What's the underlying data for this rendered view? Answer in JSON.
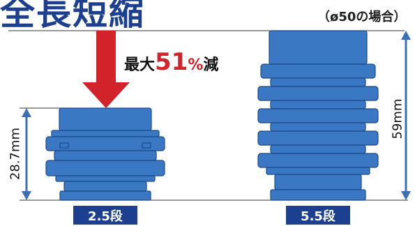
{
  "title": "全長短縮",
  "note": "（ø50の場合）",
  "reduction": {
    "label_prefix": "最大",
    "value": "51",
    "unit": "%",
    "label_suffix": "減"
  },
  "left_cup": {
    "stage_label": "2.5段",
    "height_label": "28.7mm",
    "height_mm": 28.7,
    "stages": 2.5
  },
  "right_cup": {
    "stage_label": "5.5段",
    "height_label": "59mm",
    "height_mm": 59,
    "stages": 5.5
  },
  "colors": {
    "cup_body": "#3b78c3",
    "cup_edge": "#1b4a8c",
    "arrow": "#d2232a",
    "dimension": "#3b6fb6",
    "tag": "#1d3f8f",
    "title": "#1d3f8f"
  }
}
